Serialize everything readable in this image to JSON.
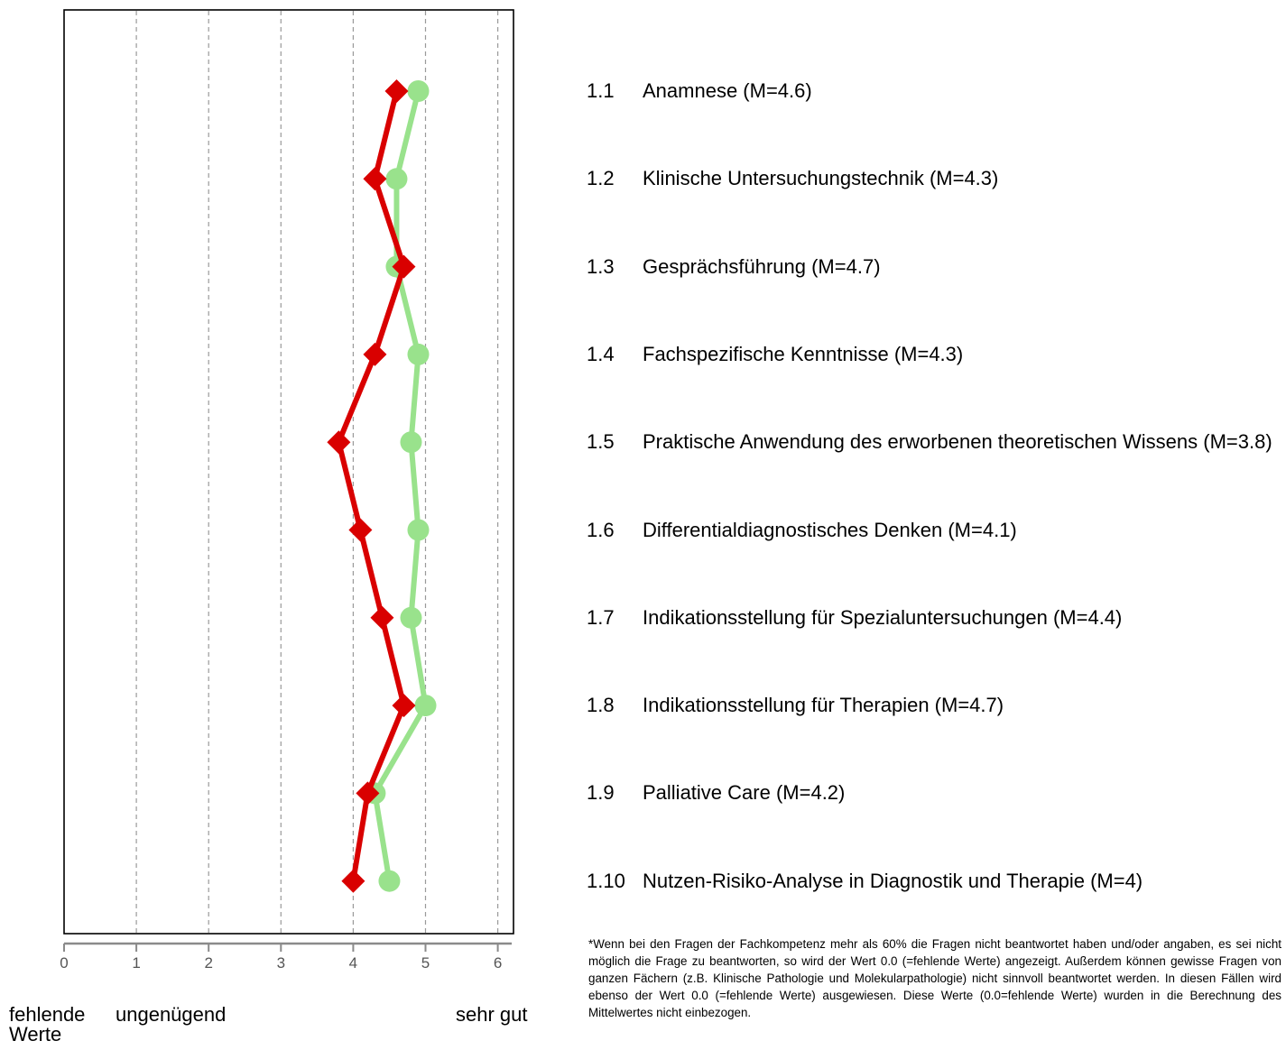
{
  "chart_data": {
    "type": "line",
    "xlim": [
      0,
      6.2
    ],
    "xticks": [
      "0",
      "1",
      "2",
      "3",
      "4",
      "5",
      "6"
    ],
    "grid": "vertical dashed",
    "categories": [
      "1.1",
      "1.2",
      "1.3",
      "1.4",
      "1.5",
      "1.6",
      "1.7",
      "1.8",
      "1.9",
      "1.10"
    ],
    "series": [
      {
        "color": "#99e28c",
        "marker": "circle",
        "values": [
          4.9,
          4.6,
          4.6,
          4.9,
          4.8,
          4.9,
          4.8,
          5.0,
          4.3,
          4.5
        ]
      },
      {
        "color": "#d90000",
        "marker": "diamond",
        "values": [
          4.6,
          4.3,
          4.7,
          4.3,
          3.8,
          4.1,
          4.4,
          4.7,
          4.2,
          4.0
        ]
      }
    ],
    "scale_labels": {
      "missing": "fehlende Werte",
      "poor": "ungenügend",
      "good": "sehr gut"
    }
  },
  "items": [
    {
      "num": "1.1",
      "label": "Anamnese (M=4.6)"
    },
    {
      "num": "1.2",
      "label": "Klinische Untersuchungstechnik (M=4.3)"
    },
    {
      "num": "1.3",
      "label": "Gesprächsführung (M=4.7)"
    },
    {
      "num": "1.4",
      "label": "Fachspezifische Kenntnisse (M=4.3)"
    },
    {
      "num": "1.5",
      "label": "Praktische Anwendung des erworbenen theoretischen Wissens (M=3.8)"
    },
    {
      "num": "1.6",
      "label": "Differentialdiagnostisches Denken (M=4.1)"
    },
    {
      "num": "1.7",
      "label": "Indikationsstellung für Spezialuntersuchungen (M=4.4)"
    },
    {
      "num": "1.8",
      "label": "Indikationsstellung für Therapien (M=4.7)"
    },
    {
      "num": "1.9",
      "label": "Palliative Care (M=4.2)"
    },
    {
      "num": "1.10",
      "label": "Nutzen-Risiko-Analyse in Diagnostik und Therapie (M=4)"
    }
  ],
  "footnote": "*Wenn bei den Fragen der Fachkompetenz mehr als 60% die Fragen nicht beantwortet haben und/oder angaben, es sei nicht möglich die Frage zu beantworten, so wird der Wert 0.0 (=fehlende Werte) angezeigt. Außerdem können gewisse Fragen von ganzen Fächern (z.B. Klinische Pathologie und Molekularpathologie) nicht sinnvoll beantwortet werden. In diesen Fällen wird ebenso der Wert 0.0 (=fehlende Werte) ausgewiesen. Diese Werte (0.0=fehlende Werte) wurden in die Berechnung des Mittelwertes nicht einbezogen."
}
